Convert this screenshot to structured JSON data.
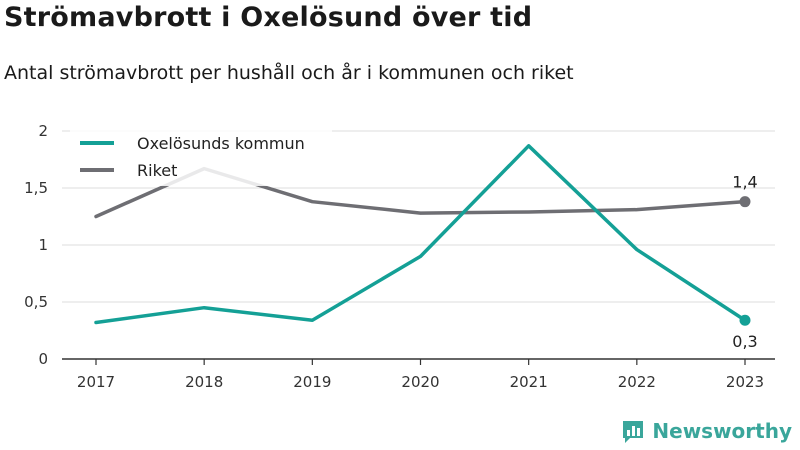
{
  "header": {
    "title": "Strömavbrott i Oxelösund över tid",
    "subtitle": "Antal strömavbrott per hushåll och år i kommunen och riket"
  },
  "brand": {
    "name": "Newsworthy"
  },
  "colors": {
    "oxelosund": "#14a096",
    "riket": "#6e6e73",
    "grid": "#dddddd",
    "axis": "#333333",
    "brand": "#3aa69b"
  },
  "chart_data": {
    "type": "line",
    "x": [
      "2017",
      "2018",
      "2019",
      "2020",
      "2021",
      "2022",
      "2023"
    ],
    "ylim": [
      0,
      2
    ],
    "yticks": [
      0,
      0.5,
      1,
      1.5,
      2
    ],
    "ytick_labels": [
      "0",
      "0,5",
      "1",
      "1,5",
      "2"
    ],
    "legend_position": "top-left",
    "grid": true,
    "series": [
      {
        "name": "Oxelösunds kommun",
        "values": [
          0.32,
          0.45,
          0.34,
          0.9,
          1.87,
          0.96,
          0.34
        ],
        "end_label": "0,3"
      },
      {
        "name": "Riket",
        "values": [
          1.25,
          1.67,
          1.38,
          1.28,
          1.29,
          1.31,
          1.38
        ],
        "end_label": "1,4"
      }
    ]
  }
}
